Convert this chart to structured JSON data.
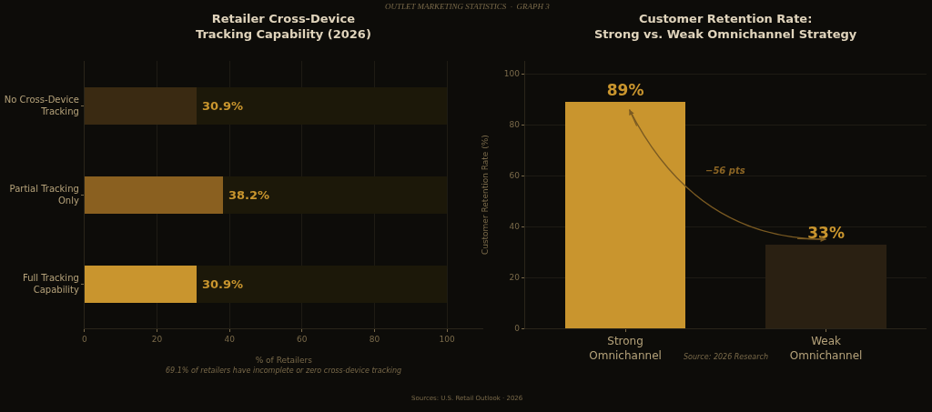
{
  "chart_data": [
    {
      "type": "bar",
      "orientation": "horizontal",
      "stacked": true,
      "title": "Retailer Cross-Device\nTracking Capability (2026)",
      "xlabel": "% of Retailers",
      "categories": [
        "No Cross-Device\nTracking",
        "Partial Tracking\nOnly",
        "Full Tracking\nCapability"
      ],
      "series": [
        {
          "colors": [
            "#3a2a12",
            "#8a6020",
            "#c9952e"
          ],
          "values": [
            30.9,
            38.2,
            30.9
          ],
          "value_labels": [
            "30.9%",
            "38.2%",
            "30.9%"
          ]
        },
        {
          "color": "#1c1809",
          "values": [
            69.1,
            61.8,
            69.1
          ]
        }
      ],
      "xlim": [
        0,
        110
      ],
      "xticks": [
        0,
        20,
        40,
        60,
        80,
        100
      ],
      "grid": "x",
      "annotations": [
        "69.1% of retailers have incomplete or zero cross-device tracking",
        "OUTLET MARKETING STATISTICS  ·  GRAPH 3",
        "Sources: U.S. Retail Outlook · 2026"
      ]
    },
    {
      "type": "bar",
      "title": "Customer Retention Rate:\nStrong vs. Weak Omnichannel Strategy",
      "ylabel": "Customer Retention Rate (%)",
      "categories": [
        "Strong\nOmnichannel",
        "Weak\nOmnichannel"
      ],
      "colors": [
        "#c9952e",
        "#2a2012"
      ],
      "values": [
        89,
        33
      ],
      "value_labels": [
        "89%",
        "33%"
      ],
      "ylim": [
        0,
        105
      ],
      "yticks": [
        0,
        20,
        40,
        60,
        80,
        100
      ],
      "grid": "y",
      "annotations": [
        "−56 pts",
        "Source: 2026 Research"
      ]
    }
  ]
}
